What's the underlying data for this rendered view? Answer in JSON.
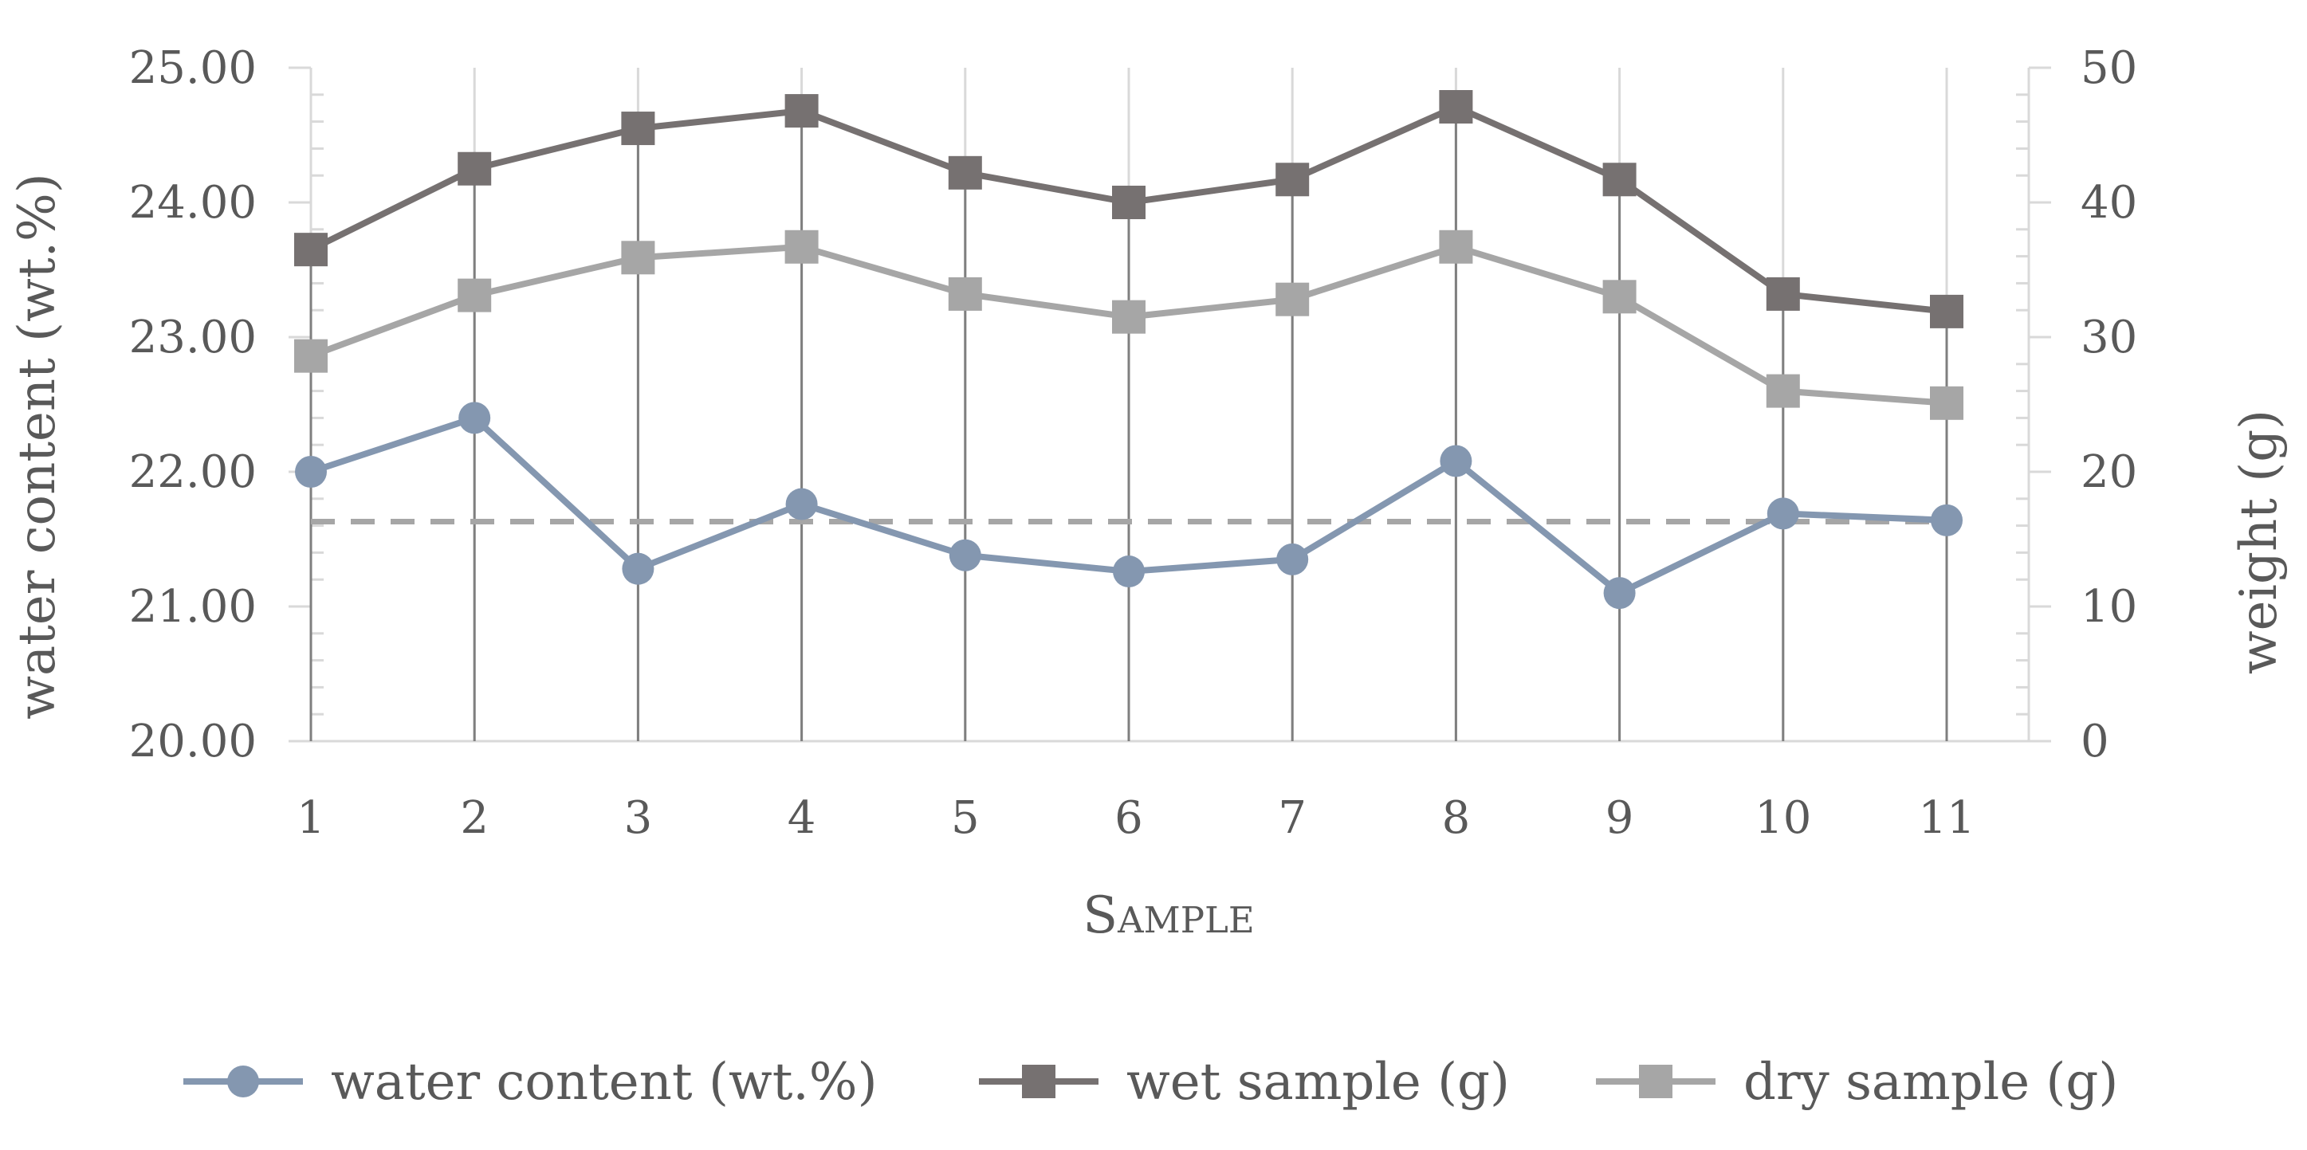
{
  "chart_data": {
    "type": "line",
    "title": "",
    "xlabel": "Sample",
    "ylabel": "water content (wt.%)",
    "y2label": "weight (g)",
    "categories": [
      "1",
      "2",
      "3",
      "4",
      "5",
      "6",
      "7",
      "8",
      "9",
      "10",
      "11"
    ],
    "ylim": [
      20,
      25
    ],
    "y2lim": [
      0,
      50
    ],
    "yticks": [
      "20.00",
      "21.00",
      "22.00",
      "23.00",
      "24.00",
      "25.00"
    ],
    "y2ticks": [
      "0",
      "10",
      "20",
      "30",
      "40",
      "50"
    ],
    "grid": "vertical",
    "series": [
      {
        "name": "water content (wt.%)",
        "axis": "left",
        "marker": "circle",
        "color": "#8497B0",
        "values": [
          22.0,
          22.4,
          21.28,
          21.76,
          21.38,
          21.26,
          21.35,
          22.08,
          21.1,
          21.69,
          21.64
        ]
      },
      {
        "name": "wet sample (g)",
        "axis": "right",
        "marker": "square",
        "color": "#767171",
        "values": [
          36.5,
          42.5,
          45.5,
          46.8,
          42.2,
          40.0,
          41.7,
          47.1,
          41.7,
          33.2,
          31.9
        ]
      },
      {
        "name": "dry sample (g)",
        "axis": "right",
        "marker": "square",
        "color": "#A6A6A6",
        "values": [
          28.6,
          33.1,
          35.9,
          36.7,
          33.2,
          31.5,
          32.8,
          36.7,
          33.0,
          26.0,
          25.1
        ]
      }
    ],
    "reference_line": {
      "axis": "left",
      "value": 21.63,
      "style": "dashed",
      "color": "#A6A6A6"
    },
    "legend": "bottom"
  }
}
